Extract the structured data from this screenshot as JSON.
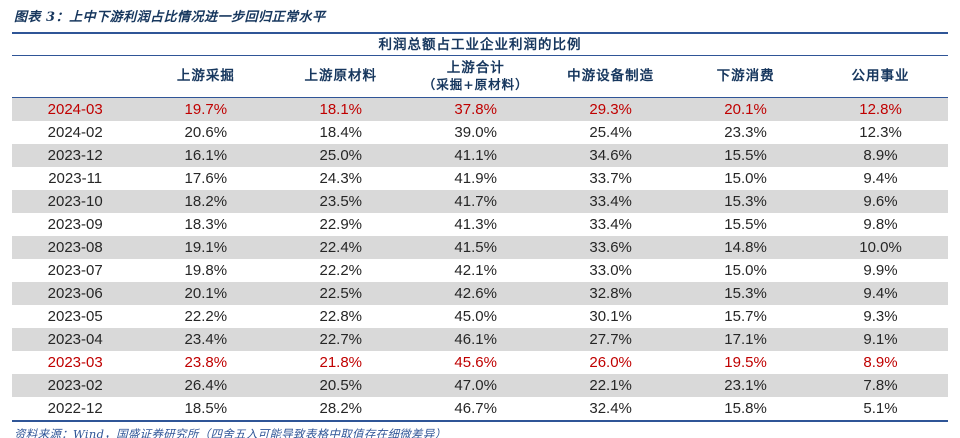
{
  "page": {
    "title": "图表 3：上中下游利润占比情况进一步回归正常水平",
    "source": "资料来源：Wind，国盛证券研究所（四舍五入可能导致表格中取值存在细微差异）"
  },
  "table": {
    "caption": "利润总额占工业企业利润的比例",
    "headers": [
      {
        "l1": "",
        "l2": ""
      },
      {
        "l1": "上游采掘",
        "l2": ""
      },
      {
        "l1": "上游原材料",
        "l2": ""
      },
      {
        "l1": "上游合计",
        "l2": "（采掘+原材料）"
      },
      {
        "l1": "中游设备制造",
        "l2": ""
      },
      {
        "l1": "下游消费",
        "l2": ""
      },
      {
        "l1": "公用事业",
        "l2": ""
      }
    ]
  },
  "chart_data": {
    "type": "table",
    "title": "利润总额占工业企业利润的比例",
    "columns": [
      "",
      "上游采掘",
      "上游原材料",
      "上游合计（采掘+原材料）",
      "中游设备制造",
      "下游消费",
      "公用事业"
    ],
    "rows": [
      {
        "date": "2024-03",
        "values": [
          "19.7%",
          "18.1%",
          "37.8%",
          "29.3%",
          "20.1%",
          "12.8%"
        ],
        "highlight": true,
        "shaded": true
      },
      {
        "date": "2024-02",
        "values": [
          "20.6%",
          "18.4%",
          "39.0%",
          "25.4%",
          "23.3%",
          "12.3%"
        ],
        "highlight": false,
        "shaded": false
      },
      {
        "date": "2023-12",
        "values": [
          "16.1%",
          "25.0%",
          "41.1%",
          "34.6%",
          "15.5%",
          "8.9%"
        ],
        "highlight": false,
        "shaded": true
      },
      {
        "date": "2023-11",
        "values": [
          "17.6%",
          "24.3%",
          "41.9%",
          "33.7%",
          "15.0%",
          "9.4%"
        ],
        "highlight": false,
        "shaded": false
      },
      {
        "date": "2023-10",
        "values": [
          "18.2%",
          "23.5%",
          "41.7%",
          "33.4%",
          "15.3%",
          "9.6%"
        ],
        "highlight": false,
        "shaded": true
      },
      {
        "date": "2023-09",
        "values": [
          "18.3%",
          "22.9%",
          "41.3%",
          "33.4%",
          "15.5%",
          "9.8%"
        ],
        "highlight": false,
        "shaded": false
      },
      {
        "date": "2023-08",
        "values": [
          "19.1%",
          "22.4%",
          "41.5%",
          "33.6%",
          "14.8%",
          "10.0%"
        ],
        "highlight": false,
        "shaded": true
      },
      {
        "date": "2023-07",
        "values": [
          "19.8%",
          "22.2%",
          "42.1%",
          "33.0%",
          "15.0%",
          "9.9%"
        ],
        "highlight": false,
        "shaded": false
      },
      {
        "date": "2023-06",
        "values": [
          "20.1%",
          "22.5%",
          "42.6%",
          "32.8%",
          "15.3%",
          "9.4%"
        ],
        "highlight": false,
        "shaded": true
      },
      {
        "date": "2023-05",
        "values": [
          "22.2%",
          "22.8%",
          "45.0%",
          "30.1%",
          "15.7%",
          "9.3%"
        ],
        "highlight": false,
        "shaded": false
      },
      {
        "date": "2023-04",
        "values": [
          "23.4%",
          "22.7%",
          "46.1%",
          "27.7%",
          "17.1%",
          "9.1%"
        ],
        "highlight": false,
        "shaded": true
      },
      {
        "date": "2023-03",
        "values": [
          "23.8%",
          "21.8%",
          "45.6%",
          "26.0%",
          "19.5%",
          "8.9%"
        ],
        "highlight": true,
        "shaded": false
      },
      {
        "date": "2023-02",
        "values": [
          "26.4%",
          "20.5%",
          "47.0%",
          "22.1%",
          "23.1%",
          "7.8%"
        ],
        "highlight": false,
        "shaded": true
      },
      {
        "date": "2022-12",
        "values": [
          "18.5%",
          "28.2%",
          "46.7%",
          "32.4%",
          "15.8%",
          "5.1%"
        ],
        "highlight": false,
        "shaded": false
      }
    ],
    "layout": {
      "grid": false,
      "shaded_row_color": "#D9D9D9",
      "highlight_text_color": "#C00000"
    }
  },
  "colors": {
    "navy_text": "#17375E",
    "border_blue": "#2F5597",
    "highlight_red": "#C00000",
    "row_shade": "#D9D9D9",
    "body_text": "#262626"
  }
}
